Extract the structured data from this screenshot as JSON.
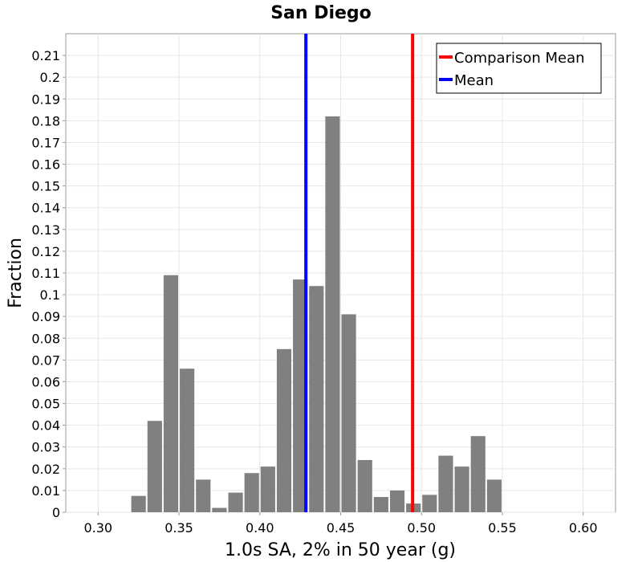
{
  "chart_data": {
    "type": "bar",
    "title": "San Diego",
    "xlabel": "1.0s SA, 2% in 50 year (g)",
    "ylabel": "Fraction",
    "xlim": [
      0.28,
      0.62
    ],
    "ylim": [
      0,
      0.22
    ],
    "bin_width": 0.01,
    "x_ticks": [
      "0.30",
      "0.35",
      "0.40",
      "0.45",
      "0.50",
      "0.55",
      "0.60"
    ],
    "y_ticks": [
      "0",
      "0.01",
      "0.02",
      "0.03",
      "0.04",
      "0.05",
      "0.06",
      "0.07",
      "0.08",
      "0.09",
      "0.1",
      "0.11",
      "0.12",
      "0.13",
      "0.14",
      "0.15",
      "0.16",
      "0.17",
      "0.18",
      "0.19",
      "0.2",
      "0.21"
    ],
    "x_tick_values": [
      0.3,
      0.35,
      0.4,
      0.45,
      0.5,
      0.55,
      0.6
    ],
    "y_tick_values": [
      0,
      0.01,
      0.02,
      0.03,
      0.04,
      0.05,
      0.06,
      0.07,
      0.08,
      0.09,
      0.1,
      0.11,
      0.12,
      0.13,
      0.14,
      0.15,
      0.16,
      0.17,
      0.18,
      0.19,
      0.2,
      0.21
    ],
    "grid": true,
    "bar_color": "#808080",
    "bins": [
      {
        "x": 0.325,
        "value": 0.0075
      },
      {
        "x": 0.335,
        "value": 0.042
      },
      {
        "x": 0.345,
        "value": 0.109
      },
      {
        "x": 0.355,
        "value": 0.066
      },
      {
        "x": 0.365,
        "value": 0.015
      },
      {
        "x": 0.375,
        "value": 0.002
      },
      {
        "x": 0.385,
        "value": 0.009
      },
      {
        "x": 0.395,
        "value": 0.018
      },
      {
        "x": 0.405,
        "value": 0.021
      },
      {
        "x": 0.415,
        "value": 0.075
      },
      {
        "x": 0.425,
        "value": 0.107
      },
      {
        "x": 0.435,
        "value": 0.104
      },
      {
        "x": 0.445,
        "value": 0.182
      },
      {
        "x": 0.455,
        "value": 0.091
      },
      {
        "x": 0.465,
        "value": 0.024
      },
      {
        "x": 0.475,
        "value": 0.007
      },
      {
        "x": 0.485,
        "value": 0.01
      },
      {
        "x": 0.495,
        "value": 0.004
      },
      {
        "x": 0.505,
        "value": 0.008
      },
      {
        "x": 0.515,
        "value": 0.026
      },
      {
        "x": 0.525,
        "value": 0.021
      },
      {
        "x": 0.535,
        "value": 0.035
      },
      {
        "x": 0.545,
        "value": 0.015
      }
    ],
    "vlines": [
      {
        "name": "Comparison Mean",
        "x": 0.4945,
        "color": "#ff0000"
      },
      {
        "name": "Mean",
        "x": 0.4285,
        "color": "#0000ff"
      }
    ],
    "legend": {
      "position": "top-right",
      "entries": [
        {
          "label": "Comparison Mean",
          "color": "#ff0000"
        },
        {
          "label": "Mean",
          "color": "#0000ff"
        }
      ]
    }
  }
}
